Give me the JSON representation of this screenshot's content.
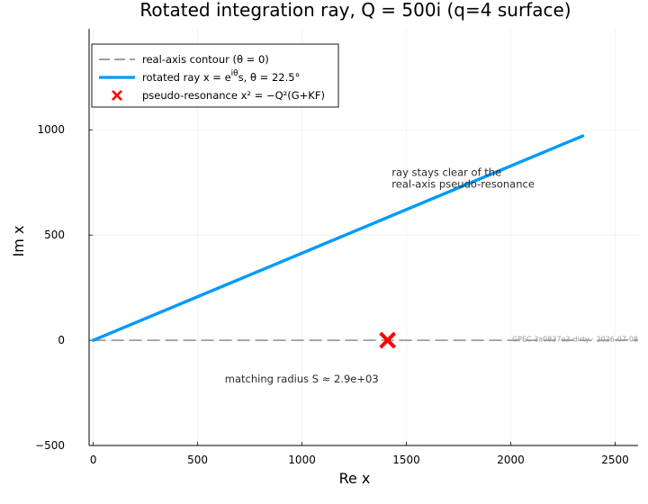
{
  "chart_data": {
    "type": "line",
    "title": "Rotated integration ray, Q = 500i  (q=4 surface)",
    "xlabel": "Re x",
    "ylabel": "Im x",
    "xlim": [
      -20,
      2610
    ],
    "ylim": [
      -500,
      1480
    ],
    "xticks": [
      0,
      500,
      1000,
      1500,
      2000,
      2500
    ],
    "xtick_labels": [
      "0",
      "500",
      "1000",
      "1500",
      "2000",
      "2500"
    ],
    "yticks": [
      -500,
      0,
      500,
      1000
    ],
    "ytick_labels": [
      "−500",
      "0",
      "500",
      "1000"
    ],
    "grid": true,
    "legend_position": "top-left",
    "series": [
      {
        "name": "real-axis contour (θ = 0)",
        "kind": "line",
        "style": "dashed",
        "color": "#808080",
        "x": [
          0,
          2610
        ],
        "y": [
          0,
          0
        ]
      },
      {
        "name": "rotated ray  x = e^{iθ}s,  θ = 22.5°",
        "kind": "line",
        "style": "solid",
        "color": "#009af9",
        "x": [
          0,
          2345
        ],
        "y": [
          0,
          971
        ]
      },
      {
        "name": "pseudo-resonance  x² = −Q²(G+KF)",
        "kind": "scatter",
        "marker": "x",
        "color": "#ff0000",
        "x": [
          1410
        ],
        "y": [
          0
        ]
      }
    ],
    "legend": [
      {
        "label": "real-axis contour (θ = 0)"
      },
      {
        "label_main": "rotated ray  x = e",
        "label_sup": "iθ",
        "label_rest": "s,  θ = 22.5°"
      },
      {
        "label": "pseudo-resonance  x² = −Q²(G+KF)"
      }
    ],
    "annotations": [
      {
        "lines": [
          "ray stays clear of the",
          "real-axis pseudo-resonance"
        ],
        "x": 1430,
        "y": 780,
        "color": "#2a2a2a"
      },
      {
        "lines": [
          "matching radius S ≈ 2.9e+03"
        ],
        "x": 630,
        "y": -200,
        "color": "#777777"
      },
      {
        "lines": [
          "GPEC 3a0837e3-dirty · 2026-07-08"
        ],
        "x": 2610,
        "y": -5,
        "color": "#999999",
        "small": true
      }
    ]
  }
}
